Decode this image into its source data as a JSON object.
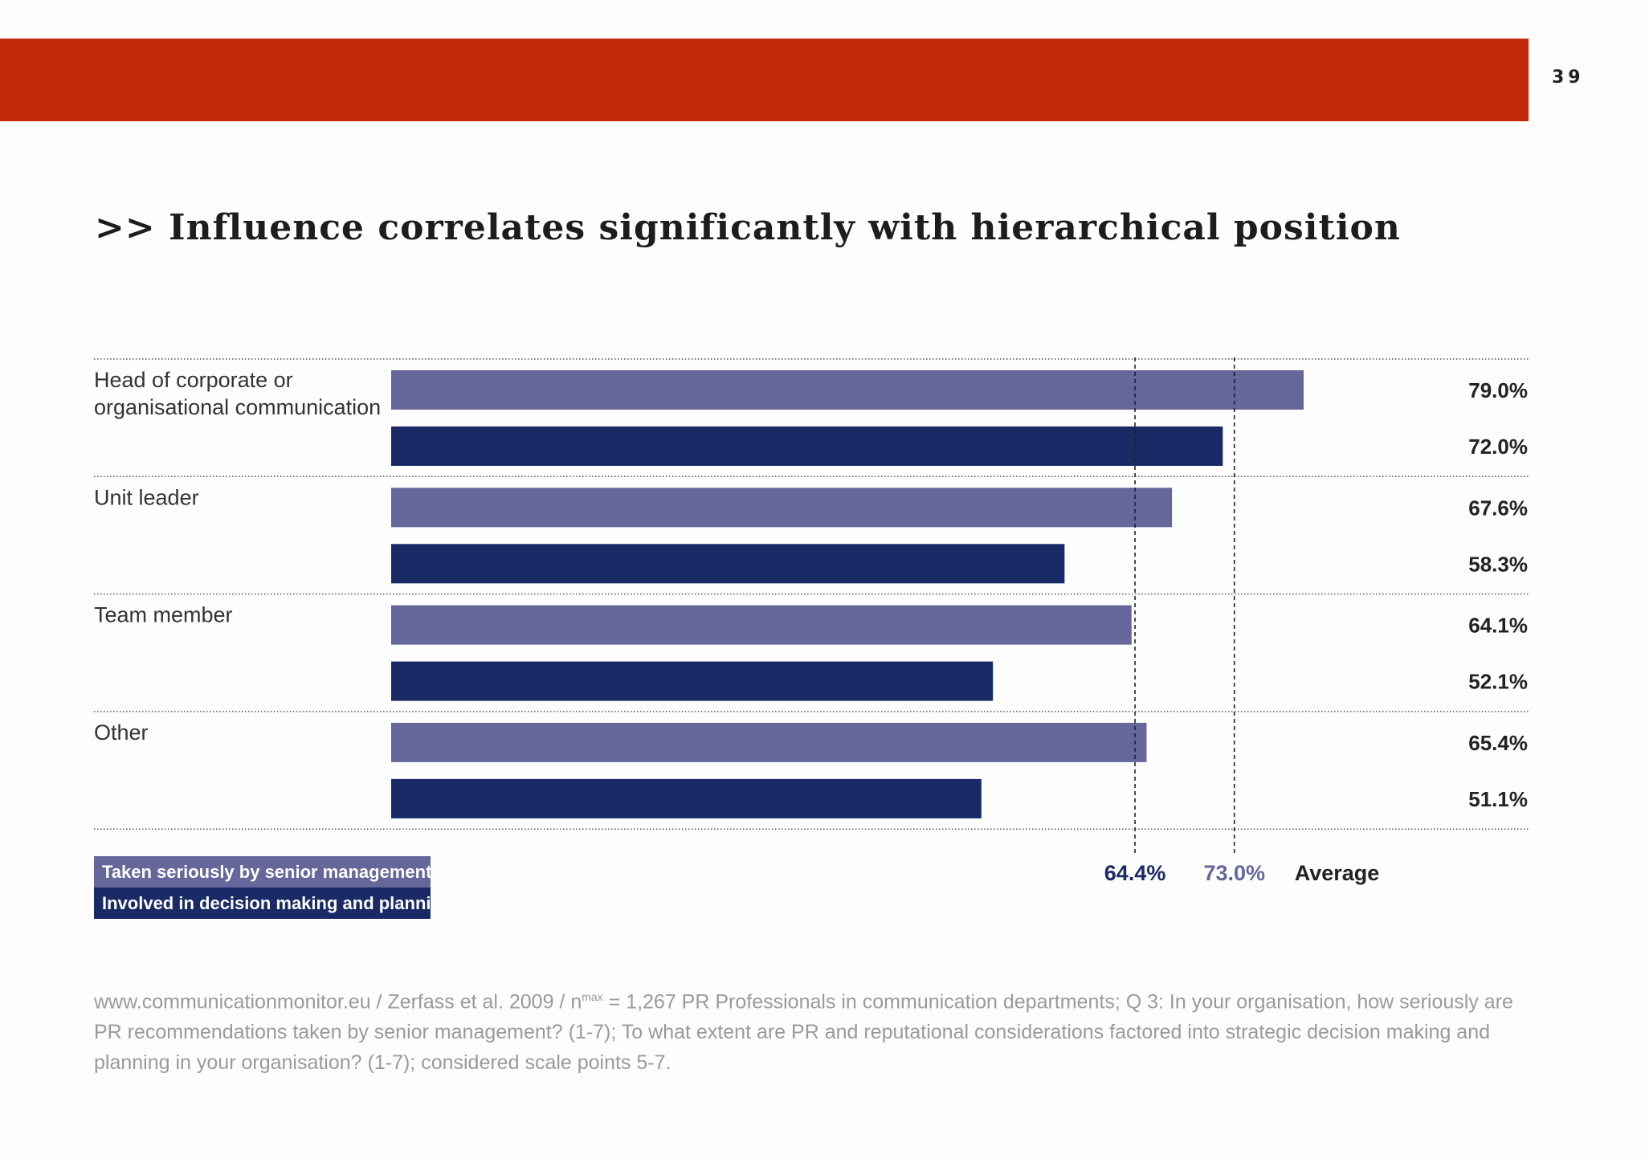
{
  "page": {
    "number": "39"
  },
  "title": ">> Influence correlates significantly with hierarchical position",
  "colors": {
    "top_bar": "#c4290a",
    "series_light": "#65669a",
    "series_dark": "#192a66"
  },
  "chart_data": {
    "type": "bar",
    "orientation": "horizontal",
    "categories": [
      [
        "Head of corporate or",
        "organisational communication"
      ],
      [
        "Unit leader"
      ],
      [
        "Team member"
      ],
      [
        "Other"
      ]
    ],
    "series": [
      {
        "name": "Taken seriously by senior management",
        "values": [
          79.0,
          67.6,
          64.1,
          65.4
        ],
        "labels": [
          "79.0%",
          "67.6%",
          "64.1%",
          "65.4%"
        ]
      },
      {
        "name": "Involved in decision making and planning",
        "values": [
          72.0,
          58.3,
          52.1,
          51.1
        ],
        "labels": [
          "72.0%",
          "58.3%",
          "52.1%",
          "51.1%"
        ]
      }
    ],
    "averages": [
      {
        "value": 64.4,
        "label": "64.4%",
        "series": 1
      },
      {
        "value": 73.0,
        "label": "73.0%",
        "series": 0
      }
    ],
    "average_label": "Average",
    "xlim": [
      0,
      100
    ]
  },
  "legend": {
    "serious": "Taken seriously by senior management",
    "decision": "Involved in decision making and planning"
  },
  "footnote": {
    "part1": "www.communicationmonitor.eu / Zerfass et al. 2009 / n",
    "sup": "max",
    "part2": " = 1,267 PR Professionals in communication departments; Q 3: In your organisation, how seriously are PR recommendations taken by senior management? (1-7); To what extent are PR and reputational considerations factored into strategic decision making and planning in your organisation? (1-7); considered scale points 5-7."
  }
}
